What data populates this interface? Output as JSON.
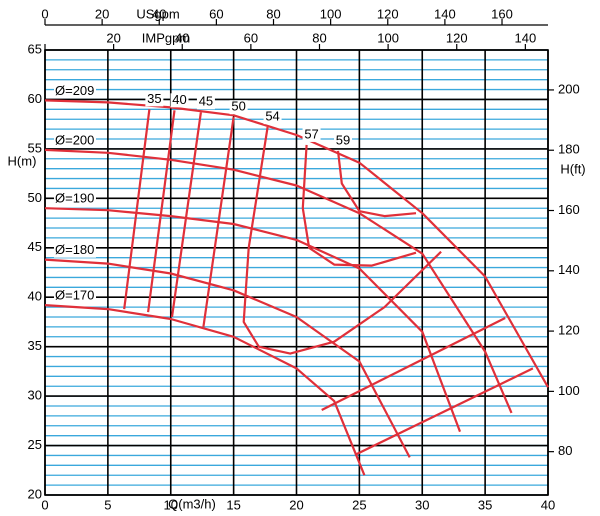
{
  "chart_data": {
    "type": "line",
    "x_label": "Q(m3/h)",
    "y_label": "H(m)",
    "y2_label": "H(ft)",
    "xlim": [
      0,
      40
    ],
    "xticks": [
      0,
      5,
      10,
      15,
      20,
      25,
      30,
      35,
      40
    ],
    "ylim": [
      20,
      65
    ],
    "yticks": [
      20,
      25,
      30,
      35,
      40,
      45,
      50,
      55,
      60,
      65
    ],
    "y2lim": [
      65.62,
      213.25
    ],
    "y2ticks": [
      80,
      100,
      120,
      140,
      160,
      180,
      200
    ],
    "top_axes": [
      {
        "label": "USgpm",
        "lim": [
          0,
          176.1
        ],
        "ticks": [
          0,
          20,
          40,
          60,
          80,
          100,
          120,
          140,
          160
        ]
      },
      {
        "label": "IMPgpm",
        "lim": [
          0,
          146.6
        ],
        "ticks": [
          0,
          20,
          40,
          60,
          80,
          100,
          120,
          140
        ]
      }
    ],
    "grid": {
      "major_color": "#000000",
      "minor_color": "#3aa8dc",
      "minor_step": 1
    },
    "diameter_curves": [
      {
        "name": "Ø=209",
        "color": "#e0303a",
        "x": [
          0,
          5,
          10,
          15,
          20,
          25,
          30,
          35,
          40
        ],
        "values": [
          59.9,
          59.7,
          59.2,
          58.4,
          56.4,
          53.6,
          48.5,
          42.1,
          30.9
        ]
      },
      {
        "name": "Ø=200",
        "color": "#e0303a",
        "x": [
          0,
          5,
          10,
          15,
          20,
          25,
          30,
          35,
          37.1
        ],
        "values": [
          54.9,
          54.6,
          53.9,
          52.9,
          51.3,
          48.5,
          44.4,
          34.5,
          28.3
        ]
      },
      {
        "name": "Ø=190",
        "color": "#e0303a",
        "x": [
          0,
          5,
          10,
          15,
          20,
          25,
          30,
          33
        ],
        "values": [
          49.0,
          48.8,
          48.2,
          47.4,
          45.8,
          42.9,
          36.5,
          26.4
        ]
      },
      {
        "name": "Ø=180",
        "color": "#e0303a",
        "x": [
          0,
          5,
          10,
          15,
          20,
          25,
          29
        ],
        "values": [
          43.8,
          43.4,
          42.4,
          40.7,
          38.0,
          33.5,
          23.8
        ]
      },
      {
        "name": "Ø=170",
        "color": "#e0303a",
        "x": [
          0,
          5,
          10,
          15,
          20,
          23,
          25.4
        ],
        "values": [
          39.2,
          38.8,
          37.8,
          36.0,
          32.8,
          29.5,
          22.0
        ]
      }
    ],
    "efficiency_curves": [
      {
        "name": "35",
        "color": "#e0303a",
        "x": [
          8.3,
          6.3
        ],
        "values": [
          59.0,
          38.8
        ]
      },
      {
        "name": "40",
        "color": "#e0303a",
        "x": [
          10.3,
          8.2
        ],
        "values": [
          58.9,
          38.5
        ]
      },
      {
        "name": "45",
        "color": "#e0303a",
        "x": [
          12.4,
          10.1
        ],
        "values": [
          58.7,
          38.0
        ]
      },
      {
        "name": "50",
        "color": "#e0303a",
        "x": [
          15.0,
          12.6
        ],
        "values": [
          58.2,
          37.0
        ]
      },
      {
        "name": "54",
        "color": "#e0303a",
        "x": [
          17.7,
          16.2,
          15.8,
          17,
          19.5,
          23,
          27,
          31.5
        ],
        "values": [
          57.2,
          45,
          37.5,
          35,
          34.3,
          35.5,
          39,
          44.6
        ]
      },
      {
        "name": "57",
        "color": "#e0303a",
        "x": [
          20.8,
          20.5,
          21.0,
          23,
          26,
          29.5
        ],
        "values": [
          55.4,
          49,
          45,
          43.3,
          43.2,
          44.5
        ]
      },
      {
        "name": "59",
        "color": "#e0303a",
        "x": [
          23.3,
          23.6,
          25,
          27,
          29.5
        ],
        "values": [
          54.8,
          51.5,
          48.7,
          48.2,
          48.5
        ]
      },
      {
        "name": null,
        "color": "#e0303a",
        "x": [
          22.0,
          36.6
        ],
        "values": [
          28.6,
          37.9
        ]
      },
      {
        "name": null,
        "color": "#e0303a",
        "x": [
          24.65,
          38.8
        ],
        "values": [
          24.05,
          32.8
        ]
      }
    ]
  }
}
